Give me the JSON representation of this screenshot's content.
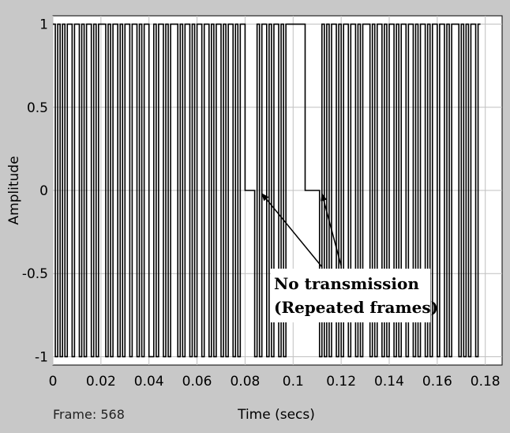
{
  "chart_data": {
    "type": "line",
    "title": "",
    "xlabel": "Time (secs)",
    "ylabel": "Amplitude",
    "xlim": [
      0,
      0.187
    ],
    "ylim": [
      -1.05,
      1.05
    ],
    "xticks": [
      "0",
      "0.02",
      "0.04",
      "0.06",
      "0.08",
      "0.1",
      "0.12",
      "0.14",
      "0.16",
      "0.18"
    ],
    "yticks": [
      "1",
      "0.5",
      "0",
      "-0.5",
      "-1"
    ],
    "grid": true,
    "series": [
      {
        "step": 0.001,
        "values": [
          1,
          -1,
          1,
          -1,
          1,
          -1,
          1,
          1,
          -1,
          1,
          1,
          -1,
          1,
          -1,
          1,
          1,
          -1,
          1,
          -1,
          1,
          1,
          1,
          -1,
          1,
          -1,
          1,
          1,
          -1,
          1,
          -1,
          1,
          1,
          -1,
          1,
          1,
          -1,
          1,
          -1,
          1,
          1,
          -1,
          -1,
          1,
          -1,
          1,
          1,
          -1,
          1,
          -1,
          1,
          1,
          1,
          -1,
          1,
          -1,
          1,
          1,
          -1,
          1,
          -1,
          1,
          1,
          -1,
          1,
          1,
          -1,
          1,
          -1,
          1,
          1,
          -1,
          1,
          -1,
          1,
          1,
          -1,
          1,
          -1,
          1,
          1,
          0,
          0,
          0,
          0,
          -1,
          1,
          -1,
          1,
          1,
          -1,
          1,
          -1,
          1,
          1,
          -1,
          1,
          -1,
          1,
          1,
          1,
          1,
          1,
          1,
          1,
          1,
          0,
          0,
          0,
          0,
          0,
          0,
          -1,
          1,
          -1,
          1,
          -1,
          1,
          1,
          -1,
          1,
          -1,
          1,
          1,
          -1,
          1,
          1,
          -1,
          1,
          -1,
          1,
          1,
          1,
          -1,
          1,
          -1,
          1,
          1,
          -1,
          1,
          -1,
          1,
          1,
          -1,
          1,
          -1,
          1,
          1,
          -1,
          1,
          1,
          -1,
          1,
          -1,
          1,
          1,
          -1,
          1,
          -1,
          1,
          1,
          -1,
          1,
          1,
          -1,
          1,
          -1,
          1,
          1,
          1,
          -1,
          1,
          -1,
          1,
          -1,
          1,
          1,
          -1,
          1
        ]
      }
    ],
    "annotation": {
      "lines": [
        "No transmission",
        "(Repeated frames)"
      ],
      "arrow_targets": [
        [
          0.087,
          0
        ],
        [
          0.112,
          0
        ]
      ]
    }
  },
  "footer": {
    "frame_label": "Frame: 568"
  },
  "colors": {
    "background": "#c8c8c8",
    "plot_bg": "#ffffff",
    "grid": "#c0c0c0",
    "trace": "#000000"
  }
}
